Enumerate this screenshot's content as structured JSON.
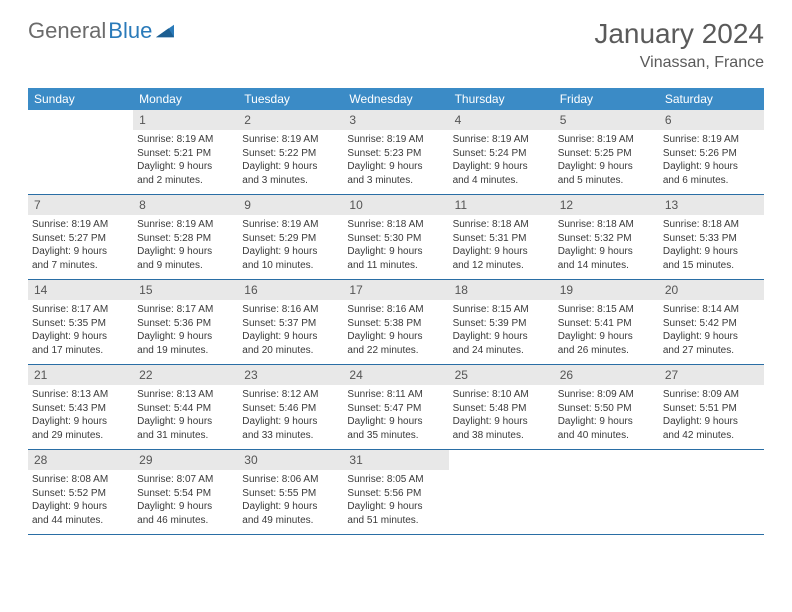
{
  "brand": {
    "part1": "General",
    "part2": "Blue"
  },
  "title": "January 2024",
  "location": "Vinassan, France",
  "colors": {
    "header_bg": "#3b8bc6",
    "header_text": "#ffffff",
    "daynum_bg": "#e8e8e8",
    "row_border": "#2a6ea5",
    "text": "#3a3a3a",
    "title_text": "#5a5a5a",
    "logo_gray": "#6b6b6b",
    "logo_blue": "#2a7ab9"
  },
  "day_names": [
    "Sunday",
    "Monday",
    "Tuesday",
    "Wednesday",
    "Thursday",
    "Friday",
    "Saturday"
  ],
  "weeks": [
    [
      {
        "n": "",
        "sr": "",
        "ss": "",
        "dl1": "",
        "dl2": ""
      },
      {
        "n": "1",
        "sr": "Sunrise: 8:19 AM",
        "ss": "Sunset: 5:21 PM",
        "dl1": "Daylight: 9 hours",
        "dl2": "and 2 minutes."
      },
      {
        "n": "2",
        "sr": "Sunrise: 8:19 AM",
        "ss": "Sunset: 5:22 PM",
        "dl1": "Daylight: 9 hours",
        "dl2": "and 3 minutes."
      },
      {
        "n": "3",
        "sr": "Sunrise: 8:19 AM",
        "ss": "Sunset: 5:23 PM",
        "dl1": "Daylight: 9 hours",
        "dl2": "and 3 minutes."
      },
      {
        "n": "4",
        "sr": "Sunrise: 8:19 AM",
        "ss": "Sunset: 5:24 PM",
        "dl1": "Daylight: 9 hours",
        "dl2": "and 4 minutes."
      },
      {
        "n": "5",
        "sr": "Sunrise: 8:19 AM",
        "ss": "Sunset: 5:25 PM",
        "dl1": "Daylight: 9 hours",
        "dl2": "and 5 minutes."
      },
      {
        "n": "6",
        "sr": "Sunrise: 8:19 AM",
        "ss": "Sunset: 5:26 PM",
        "dl1": "Daylight: 9 hours",
        "dl2": "and 6 minutes."
      }
    ],
    [
      {
        "n": "7",
        "sr": "Sunrise: 8:19 AM",
        "ss": "Sunset: 5:27 PM",
        "dl1": "Daylight: 9 hours",
        "dl2": "and 7 minutes."
      },
      {
        "n": "8",
        "sr": "Sunrise: 8:19 AM",
        "ss": "Sunset: 5:28 PM",
        "dl1": "Daylight: 9 hours",
        "dl2": "and 9 minutes."
      },
      {
        "n": "9",
        "sr": "Sunrise: 8:19 AM",
        "ss": "Sunset: 5:29 PM",
        "dl1": "Daylight: 9 hours",
        "dl2": "and 10 minutes."
      },
      {
        "n": "10",
        "sr": "Sunrise: 8:18 AM",
        "ss": "Sunset: 5:30 PM",
        "dl1": "Daylight: 9 hours",
        "dl2": "and 11 minutes."
      },
      {
        "n": "11",
        "sr": "Sunrise: 8:18 AM",
        "ss": "Sunset: 5:31 PM",
        "dl1": "Daylight: 9 hours",
        "dl2": "and 12 minutes."
      },
      {
        "n": "12",
        "sr": "Sunrise: 8:18 AM",
        "ss": "Sunset: 5:32 PM",
        "dl1": "Daylight: 9 hours",
        "dl2": "and 14 minutes."
      },
      {
        "n": "13",
        "sr": "Sunrise: 8:18 AM",
        "ss": "Sunset: 5:33 PM",
        "dl1": "Daylight: 9 hours",
        "dl2": "and 15 minutes."
      }
    ],
    [
      {
        "n": "14",
        "sr": "Sunrise: 8:17 AM",
        "ss": "Sunset: 5:35 PM",
        "dl1": "Daylight: 9 hours",
        "dl2": "and 17 minutes."
      },
      {
        "n": "15",
        "sr": "Sunrise: 8:17 AM",
        "ss": "Sunset: 5:36 PM",
        "dl1": "Daylight: 9 hours",
        "dl2": "and 19 minutes."
      },
      {
        "n": "16",
        "sr": "Sunrise: 8:16 AM",
        "ss": "Sunset: 5:37 PM",
        "dl1": "Daylight: 9 hours",
        "dl2": "and 20 minutes."
      },
      {
        "n": "17",
        "sr": "Sunrise: 8:16 AM",
        "ss": "Sunset: 5:38 PM",
        "dl1": "Daylight: 9 hours",
        "dl2": "and 22 minutes."
      },
      {
        "n": "18",
        "sr": "Sunrise: 8:15 AM",
        "ss": "Sunset: 5:39 PM",
        "dl1": "Daylight: 9 hours",
        "dl2": "and 24 minutes."
      },
      {
        "n": "19",
        "sr": "Sunrise: 8:15 AM",
        "ss": "Sunset: 5:41 PM",
        "dl1": "Daylight: 9 hours",
        "dl2": "and 26 minutes."
      },
      {
        "n": "20",
        "sr": "Sunrise: 8:14 AM",
        "ss": "Sunset: 5:42 PM",
        "dl1": "Daylight: 9 hours",
        "dl2": "and 27 minutes."
      }
    ],
    [
      {
        "n": "21",
        "sr": "Sunrise: 8:13 AM",
        "ss": "Sunset: 5:43 PM",
        "dl1": "Daylight: 9 hours",
        "dl2": "and 29 minutes."
      },
      {
        "n": "22",
        "sr": "Sunrise: 8:13 AM",
        "ss": "Sunset: 5:44 PM",
        "dl1": "Daylight: 9 hours",
        "dl2": "and 31 minutes."
      },
      {
        "n": "23",
        "sr": "Sunrise: 8:12 AM",
        "ss": "Sunset: 5:46 PM",
        "dl1": "Daylight: 9 hours",
        "dl2": "and 33 minutes."
      },
      {
        "n": "24",
        "sr": "Sunrise: 8:11 AM",
        "ss": "Sunset: 5:47 PM",
        "dl1": "Daylight: 9 hours",
        "dl2": "and 35 minutes."
      },
      {
        "n": "25",
        "sr": "Sunrise: 8:10 AM",
        "ss": "Sunset: 5:48 PM",
        "dl1": "Daylight: 9 hours",
        "dl2": "and 38 minutes."
      },
      {
        "n": "26",
        "sr": "Sunrise: 8:09 AM",
        "ss": "Sunset: 5:50 PM",
        "dl1": "Daylight: 9 hours",
        "dl2": "and 40 minutes."
      },
      {
        "n": "27",
        "sr": "Sunrise: 8:09 AM",
        "ss": "Sunset: 5:51 PM",
        "dl1": "Daylight: 9 hours",
        "dl2": "and 42 minutes."
      }
    ],
    [
      {
        "n": "28",
        "sr": "Sunrise: 8:08 AM",
        "ss": "Sunset: 5:52 PM",
        "dl1": "Daylight: 9 hours",
        "dl2": "and 44 minutes."
      },
      {
        "n": "29",
        "sr": "Sunrise: 8:07 AM",
        "ss": "Sunset: 5:54 PM",
        "dl1": "Daylight: 9 hours",
        "dl2": "and 46 minutes."
      },
      {
        "n": "30",
        "sr": "Sunrise: 8:06 AM",
        "ss": "Sunset: 5:55 PM",
        "dl1": "Daylight: 9 hours",
        "dl2": "and 49 minutes."
      },
      {
        "n": "31",
        "sr": "Sunrise: 8:05 AM",
        "ss": "Sunset: 5:56 PM",
        "dl1": "Daylight: 9 hours",
        "dl2": "and 51 minutes."
      },
      {
        "n": "",
        "sr": "",
        "ss": "",
        "dl1": "",
        "dl2": ""
      },
      {
        "n": "",
        "sr": "",
        "ss": "",
        "dl1": "",
        "dl2": ""
      },
      {
        "n": "",
        "sr": "",
        "ss": "",
        "dl1": "",
        "dl2": ""
      }
    ]
  ]
}
